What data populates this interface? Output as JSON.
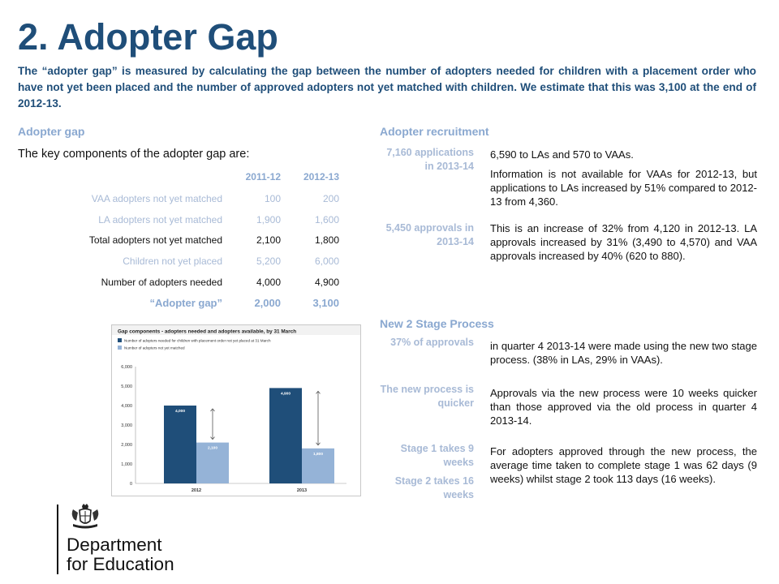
{
  "title": "2. Adopter Gap",
  "intro": "The “adopter gap” is measured by calculating the gap between the number of adopters needed for children with a placement order who have not yet been placed and the number of approved adopters not yet matched with children. We estimate that this was 3,100 at the end of 2012-13.",
  "left": {
    "heading": "Adopter gap",
    "lead": "The key components of the adopter gap are:",
    "table": {
      "headers": [
        "2011-12",
        "2012-13"
      ],
      "rows": [
        {
          "label": "VAA adopters not yet matched",
          "v1": "100",
          "v2": "200"
        },
        {
          "label": "LA adopters not yet matched",
          "v1": "1,900",
          "v2": "1,600"
        },
        {
          "label": "Total adopters not yet matched",
          "v1": "2,100",
          "v2": "1,800"
        },
        {
          "label": "Children not yet placed",
          "v1": "5,200",
          "v2": "6,000"
        },
        {
          "label": "Number of adopters needed",
          "v1": "4,000",
          "v2": "4,900"
        },
        {
          "label": "“Adopter gap”",
          "v1": "2,000",
          "v2": "3,100"
        }
      ]
    }
  },
  "chart_data": {
    "type": "bar",
    "title": "Gap components - adopters needed and adopters available, by 31 March",
    "categories": [
      "2012",
      "2013"
    ],
    "series": [
      {
        "name": "Number of adopters needed for children with placement order not yet placed at 31 March",
        "values": [
          4000,
          4900
        ],
        "labels": [
          "4,000",
          "4,900"
        ],
        "color": "#1f4e79"
      },
      {
        "name": "Number of adopters not yet matched",
        "values": [
          2100,
          1800
        ],
        "labels": [
          "2,100",
          "1,800"
        ],
        "color": "#95b3d7"
      }
    ],
    "ylim": [
      0,
      6000
    ],
    "yticks": [
      0,
      1000,
      2000,
      3000,
      4000,
      5000,
      6000
    ],
    "ytick_labels": [
      "0",
      "1,000",
      "2,000",
      "3,000",
      "4,000",
      "5,000",
      "6,000"
    ],
    "grid": false,
    "legend": "top"
  },
  "recruitment": {
    "heading": "Adopter recruitment",
    "rows": [
      {
        "key": "7,160 applications in 2013-14",
        "value": "6,590 to LAs and 570 to VAAs."
      },
      {
        "key": "",
        "value": "Information is not available for VAAs for 2012-13, but applications to LAs increased by 51% compared to 2012-13 from 4,360."
      },
      {
        "key": "5,450 approvals in 2013-14",
        "value": "This is an increase of 32% from 4,120 in 2012-13. LA approvals increased by 31% (3,490 to 4,570) and VAA approvals increased by 40% (620 to 880)."
      }
    ]
  },
  "process": {
    "heading": "New 2 Stage Process",
    "rows": [
      {
        "key": "37% of approvals",
        "value": "in quarter 4 2013-14 were made using the new two stage process. (38% in LAs, 29% in VAAs)."
      },
      {
        "key": "The new process is quicker",
        "value": "Approvals via the new process were 10 weeks quicker than those approved via the old process in quarter 4 2013-14."
      },
      {
        "key": "Stage 1 takes 9 weeks",
        "value": "For adopters approved through the new process, the average time taken to complete stage 1 was 62 days (9 weeks) whilst stage 2 took 113 days (16 weeks)."
      },
      {
        "key": "Stage 2 takes 16 weeks",
        "value": ""
      }
    ]
  },
  "logo": {
    "line1": "Department",
    "line2": "for Education"
  },
  "colors": {
    "title": "#1f4e79",
    "accent": "#8aa8d0",
    "muted": "#a8bad6"
  }
}
